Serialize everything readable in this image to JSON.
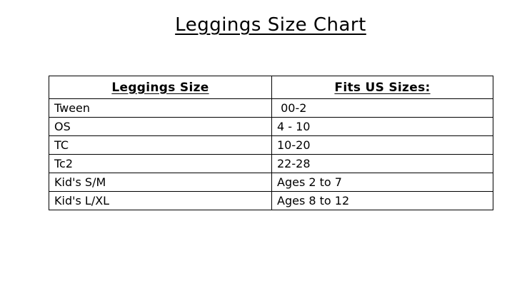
{
  "title": "Leggings Size Chart",
  "table": {
    "headers": [
      "Leggings Size",
      "Fits US Sizes:"
    ],
    "rows": [
      [
        "Tween",
        " 00-2"
      ],
      [
        "OS",
        "4 - 10"
      ],
      [
        "TC",
        "10-20"
      ],
      [
        "Tc2",
        "22-28"
      ],
      [
        "Kid's S/M",
        "Ages 2 to 7"
      ],
      [
        "Kid's L/XL",
        "Ages 8 to 12"
      ]
    ]
  },
  "colors": {
    "background": "#ffffff",
    "text": "#000000",
    "border": "#000000"
  }
}
